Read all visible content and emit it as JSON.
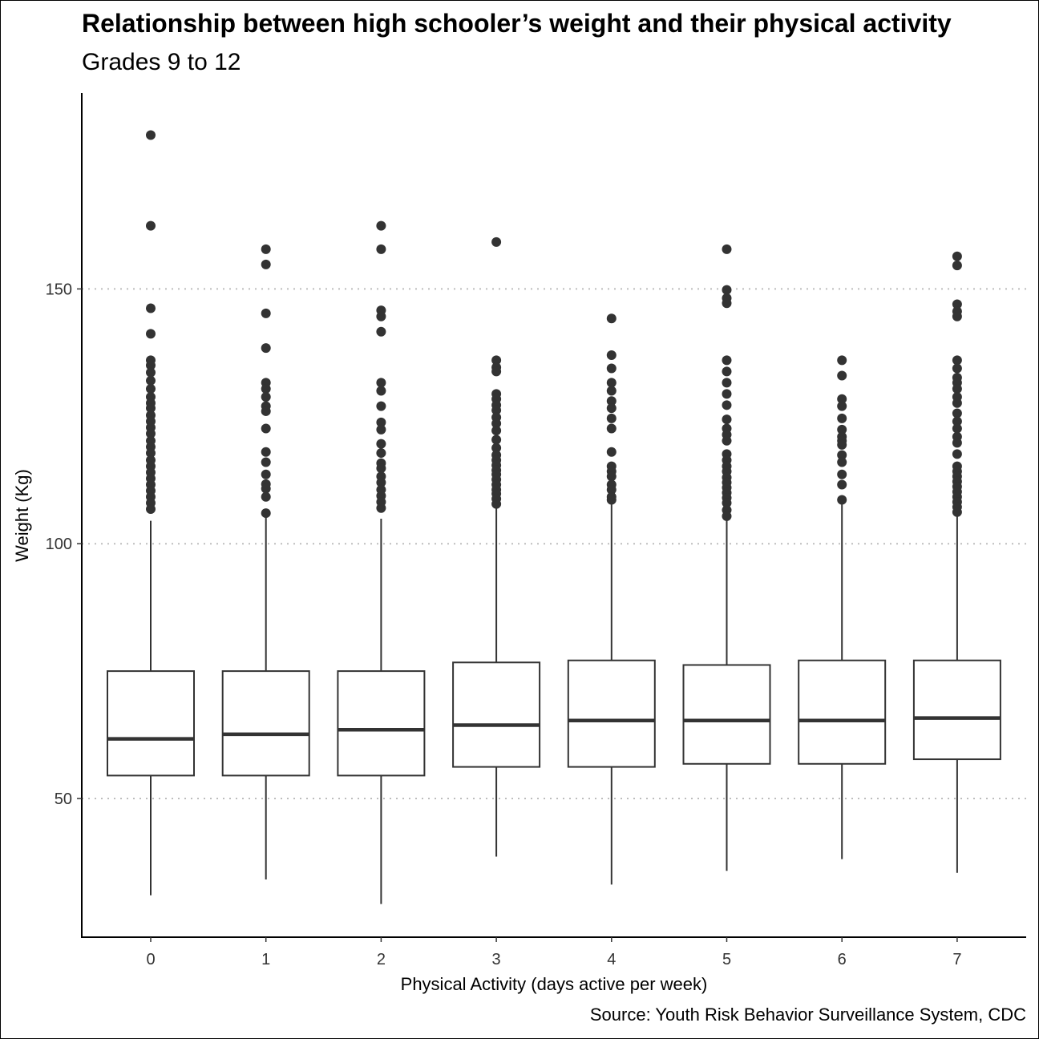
{
  "chart_data": {
    "type": "box",
    "title": "Relationship between high schooler’s weight and their physical activity",
    "subtitle": "Grades 9 to 12",
    "caption": "Source: Youth Risk Behavior Surveillance System, CDC",
    "xlabel": "Physical Activity (days active per week)",
    "ylabel": "Weight (Kg)",
    "ylim": [
      21,
      184
    ],
    "yticks": [
      50,
      100,
      150
    ],
    "grid": "horizontal dotted at major y ticks",
    "categories": [
      "0",
      "1",
      "2",
      "3",
      "4",
      "5",
      "6",
      "7"
    ],
    "boxes": [
      {
        "category": "0",
        "whisker_low": 31,
        "q1": 54.5,
        "median": 61.7,
        "q3": 75,
        "whisker_high": 104.5,
        "outliers": [
          180.2,
          162.4,
          146.2,
          141.2,
          136,
          135,
          133.6,
          132,
          130.4,
          128.8,
          127.6,
          126.6,
          125.2,
          124,
          122.8,
          121.6,
          120.2,
          119,
          117.8,
          116.4,
          115.2,
          114,
          112.8,
          111.6,
          110.4,
          109.2,
          108,
          106.8
        ]
      },
      {
        "category": "1",
        "whisker_low": 34.1,
        "q1": 54.5,
        "median": 62.6,
        "q3": 75,
        "whisker_high": 106,
        "outliers": [
          157.8,
          154.8,
          145.2,
          138.4,
          131.6,
          130.4,
          128.8,
          127,
          126,
          122.6,
          118,
          116,
          113.6,
          111.7,
          110.8,
          109.2,
          106
        ]
      },
      {
        "category": "2",
        "whisker_low": 29.3,
        "q1": 54.5,
        "median": 63.5,
        "q3": 75,
        "whisker_high": 104.9,
        "outliers": [
          162.4,
          157.8,
          145.8,
          144.6,
          141.6,
          131.6,
          130,
          127,
          123.8,
          122.4,
          119.6,
          117.8,
          115.8,
          114.8,
          113.2,
          112,
          110.6,
          109.4,
          108.2,
          107
        ]
      },
      {
        "category": "3",
        "whisker_low": 38.6,
        "q1": 56.2,
        "median": 64.4,
        "q3": 76.7,
        "whisker_high": 107.3,
        "outliers": [
          159.2,
          136,
          134.6,
          133.8,
          129.4,
          128.4,
          127.2,
          126.2,
          124.8,
          123.6,
          122.2,
          120.4,
          118.8,
          117.4,
          116.4,
          115.4,
          114.4,
          113.6,
          112.6,
          111.6,
          110.6,
          109.8,
          108.8,
          107.8
        ]
      },
      {
        "category": "4",
        "whisker_low": 33.1,
        "q1": 56.2,
        "median": 65.3,
        "q3": 77.1,
        "whisker_high": 107.7,
        "outliers": [
          144.2,
          137,
          134.4,
          131.6,
          130,
          128,
          126.6,
          124.6,
          122.6,
          118,
          115.2,
          114.2,
          113.2,
          111.6,
          110.6,
          109.2,
          108.6
        ]
      },
      {
        "category": "5",
        "whisker_low": 35.8,
        "q1": 56.8,
        "median": 65.3,
        "q3": 76.2,
        "whisker_high": 105.3,
        "outliers": [
          157.8,
          149.8,
          148.2,
          147.2,
          136,
          133.8,
          131.6,
          129.4,
          127.2,
          124.4,
          122.6,
          121.4,
          120.2,
          117.6,
          116.4,
          115.2,
          114.2,
          113,
          112,
          111,
          110,
          109,
          108,
          106.6,
          105.4
        ]
      },
      {
        "category": "6",
        "whisker_low": 38.1,
        "q1": 56.8,
        "median": 65.3,
        "q3": 77.1,
        "whisker_high": 107.7,
        "outliers": [
          136,
          133,
          128.4,
          127,
          124.6,
          122.4,
          121,
          120.2,
          119.4,
          117.4,
          116,
          113.6,
          111.6,
          108.6
        ]
      },
      {
        "category": "7",
        "whisker_low": 35.4,
        "q1": 57.7,
        "median": 65.8,
        "q3": 77.1,
        "whisker_high": 105.4,
        "outliers": [
          156.4,
          154.6,
          147,
          145.6,
          144.6,
          136,
          134.4,
          132.6,
          131.6,
          130.4,
          128.8,
          127.6,
          125.6,
          124,
          122.6,
          121,
          119.8,
          117.6,
          115.2,
          114.2,
          113.2,
          112.2,
          111.2,
          110.2,
          109.2,
          108.2,
          107.2,
          106.2
        ]
      }
    ]
  }
}
